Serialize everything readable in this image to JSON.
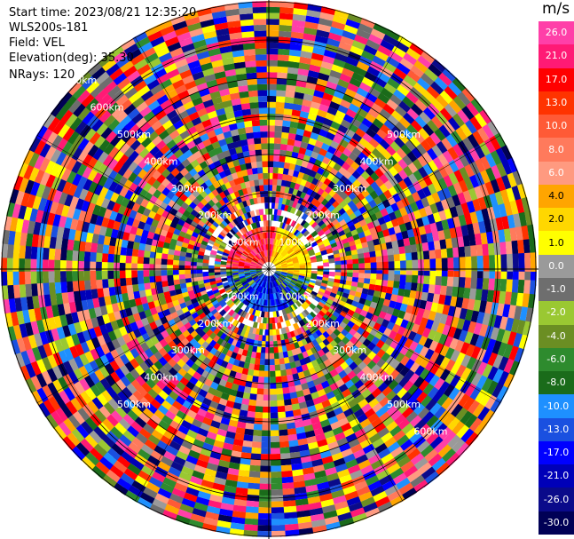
{
  "header": {
    "start_time": "Start time: 2023/08/21 12:35:20",
    "instrument": "WLS200s-181",
    "field": "Field: VEL",
    "elevation": "Elevation(deg): 35.30",
    "nrays": "NRays: 120"
  },
  "colorbar": {
    "unit": "m/s",
    "ticks": [
      "26.0",
      "21.0",
      "17.0",
      "13.0",
      "10.0",
      "8.0",
      "6.0",
      "4.0",
      "2.0",
      "1.0",
      "0.0",
      "-1.0",
      "-2.0",
      "-4.0",
      "-6.0",
      "-8.0",
      "-10.0",
      "-13.0",
      "-17.0",
      "-21.0",
      "-26.0",
      "-30.0"
    ],
    "colors": [
      "#ff3fa8",
      "#ff1a75",
      "#ff0000",
      "#ff3300",
      "#ff5a36",
      "#ff7a5c",
      "#ff9a80",
      "#ffa500",
      "#ffd700",
      "#ffff00",
      "#9a9a9a",
      "#6e6e6e",
      "#9ac832",
      "#6b8e23",
      "#2e8b2e",
      "#1a6b1a",
      "#1e90ff",
      "#1a50e0",
      "#0000ff",
      "#0000b8",
      "#0a0a8a",
      "#000055"
    ]
  },
  "range_rings": {
    "labels_nw": [
      "100km",
      "200km",
      "300km",
      "400km",
      "500km",
      "600km",
      "700km"
    ],
    "labels_ne": [
      "100km",
      "200km",
      "300km",
      "400km",
      "500km"
    ],
    "labels_sw": [
      "100km",
      "200km",
      "300km",
      "400km",
      "500km"
    ],
    "labels_se": [
      "100km",
      "200km",
      "300km",
      "400km",
      "500km",
      "600km"
    ]
  }
}
